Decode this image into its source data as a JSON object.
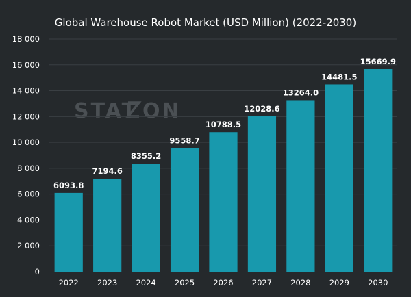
{
  "watermark": "STATZON",
  "chart_data": {
    "type": "bar",
    "title": "Global Warehouse Robot Market (USD Million) (2022-2030)",
    "xlabel": "",
    "ylabel": "",
    "categories": [
      "2022",
      "2023",
      "2024",
      "2025",
      "2026",
      "2027",
      "2028",
      "2029",
      "2030"
    ],
    "values": [
      6093.8,
      7194.6,
      8355.2,
      9558.7,
      10788.5,
      12028.6,
      13264.0,
      14481.5,
      15669.9
    ],
    "value_labels": [
      "6093.8",
      "7194.6",
      "8355.2",
      "9558.7",
      "10788.5",
      "12028.6",
      "13264.0",
      "14481.5",
      "15669.9"
    ],
    "ylim": [
      0,
      18000
    ],
    "yticks": [
      0,
      2000,
      4000,
      6000,
      8000,
      10000,
      12000,
      14000,
      16000,
      18000
    ],
    "ytick_labels": [
      "0",
      "2 000",
      "4 000",
      "6 000",
      "8 000",
      "10 000",
      "12 000",
      "14 000",
      "16 000",
      "18 000"
    ],
    "grid": true,
    "bar_color": "#1899ad",
    "background": "#25292c"
  }
}
